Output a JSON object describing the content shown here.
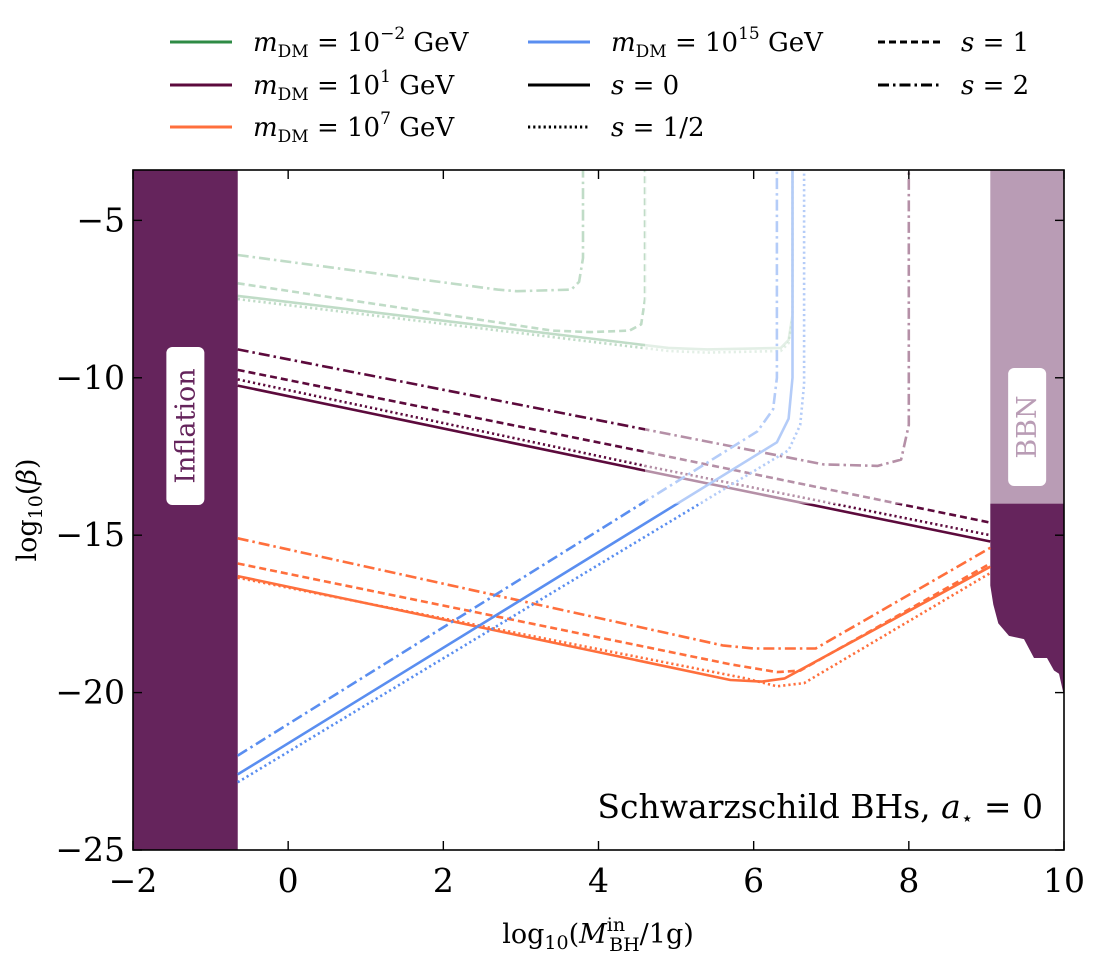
{
  "chart_data": {
    "type": "line",
    "title": "",
    "xlabel": "log10(M_BH^in/1g)",
    "ylabel": "log10(β)",
    "xlim": [
      -2,
      10
    ],
    "ylim": [
      -25,
      -3.4
    ],
    "x_ticks": [
      "−2",
      "0",
      "2",
      "4",
      "6",
      "8",
      "10"
    ],
    "y_ticks": [
      "−25",
      "−20",
      "−15",
      "−10",
      "−5"
    ],
    "grid": false,
    "legend_position": "top (above plot, three columns)",
    "annotation": "Schwarzschild BHs, a⋆ = 0",
    "regions": [
      {
        "name": "Inflation",
        "x_range": [
          -2,
          -0.65
        ],
        "color": "#65245c"
      },
      {
        "name": "BBN",
        "x_range": [
          9.05,
          10
        ],
        "color": "#65245c"
      }
    ],
    "legend": {
      "mass_entries": [
        {
          "label": "m_DM = 10^−2 GeV",
          "color": "#2e8b45"
        },
        {
          "label": "m_DM = 10^1 GeV",
          "color": "#5c0a3c"
        },
        {
          "label": "m_DM = 10^7 GeV",
          "color": "#ff6f3c"
        },
        {
          "label": "m_DM = 10^15 GeV",
          "color": "#5a8ef0"
        }
      ],
      "spin_entries": [
        {
          "label": "s = 0",
          "style": "solid"
        },
        {
          "label": "s = 1/2",
          "style": "dotted"
        },
        {
          "label": "s = 1",
          "style": "dashed"
        },
        {
          "label": "s = 2",
          "style": "dashdot"
        }
      ]
    },
    "series": [
      {
        "mass": "1e-2",
        "spin": "0",
        "color": "#2e8b45",
        "faded": true,
        "x": [
          -0.65,
          4.9,
          5.4,
          6.35,
          6.45,
          6.5,
          6.5
        ],
        "y": [
          -7.4,
          -9.05,
          -9.1,
          -9.05,
          -8.8,
          -8.0,
          -3.4
        ]
      },
      {
        "mass": "1e-2",
        "spin": "1/2",
        "color": "#2e8b45",
        "faded": true,
        "x": [
          -0.65,
          4.9,
          5.4,
          6.35,
          6.45,
          6.5,
          6.5
        ],
        "y": [
          -7.5,
          -9.15,
          -9.2,
          -9.15,
          -8.9,
          -8.1,
          -3.4
        ]
      },
      {
        "mass": "1e-2",
        "spin": "1",
        "color": "#2e8b45",
        "faded": true,
        "x": [
          -0.65,
          3.4,
          3.9,
          4.4,
          4.55,
          4.6,
          4.6
        ],
        "y": [
          -7.0,
          -8.5,
          -8.55,
          -8.5,
          -8.3,
          -7.5,
          -3.4
        ]
      },
      {
        "mass": "1e-2",
        "spin": "2",
        "color": "#2e8b45",
        "faded": true,
        "x": [
          -0.65,
          2.7,
          2.95,
          3.65,
          3.75,
          3.8,
          3.8
        ],
        "y": [
          -6.1,
          -7.2,
          -7.25,
          -7.2,
          -6.95,
          -6.2,
          -3.4
        ]
      },
      {
        "mass": "1e1",
        "spin": "0",
        "color": "#5c0a3c",
        "x": [
          -0.65,
          4.6,
          9.05
        ],
        "y": [
          -10.25,
          -12.95,
          -15.2
        ]
      },
      {
        "mass": "1e1",
        "spin": "1/2",
        "color": "#5c0a3c",
        "x": [
          -0.65,
          4.6,
          9.05
        ],
        "y": [
          -10.05,
          -12.8,
          -15.0
        ]
      },
      {
        "mass": "1e1",
        "spin": "1",
        "color": "#5c0a3c",
        "x": [
          -0.65,
          4.6,
          9.05
        ],
        "y": [
          -9.75,
          -12.35,
          -14.6
        ]
      },
      {
        "mass": "1e1",
        "spin": "2",
        "color": "#5c0a3c",
        "x": [
          -0.65,
          6.9,
          7.6,
          7.9,
          8.0,
          8.0
        ],
        "y": [
          -9.1,
          -12.75,
          -12.8,
          -12.6,
          -11.5,
          -3.4
        ]
      },
      {
        "mass": "1e7",
        "spin": "0",
        "color": "#ff6f3c",
        "x": [
          -0.65,
          5.7,
          6.1,
          6.4,
          9.05
        ],
        "y": [
          -16.3,
          -19.6,
          -19.65,
          -19.55,
          -16.0
        ]
      },
      {
        "mass": "1e7",
        "spin": "1/2",
        "color": "#ff6f3c",
        "x": [
          -0.65,
          5.9,
          6.3,
          6.65,
          9.05
        ],
        "y": [
          -16.35,
          -19.55,
          -19.8,
          -19.7,
          -16.2
        ]
      },
      {
        "mass": "1e7",
        "spin": "1",
        "color": "#ff6f3c",
        "x": [
          -0.65,
          5.7,
          6.3,
          6.6,
          9.05
        ],
        "y": [
          -15.9,
          -19.1,
          -19.35,
          -19.3,
          -15.9
        ]
      },
      {
        "mass": "1e7",
        "spin": "2",
        "color": "#ff6f3c",
        "x": [
          -0.65,
          5.6,
          6.0,
          6.8,
          9.05
        ],
        "y": [
          -15.1,
          -18.5,
          -18.6,
          -18.6,
          -15.4
        ]
      },
      {
        "mass": "1e15",
        "spin": "0",
        "color": "#5a8ef0",
        "x": [
          -0.65,
          6.3,
          6.45,
          6.5,
          6.5
        ],
        "y": [
          -22.6,
          -12.05,
          -11.3,
          -10.0,
          -3.4
        ]
      },
      {
        "mass": "1e15",
        "spin": "1/2",
        "color": "#5a8ef0",
        "x": [
          -0.65,
          6.45,
          6.6,
          6.65,
          6.65
        ],
        "y": [
          -22.85,
          -12.3,
          -11.5,
          -10.2,
          -3.4
        ]
      },
      {
        "mass": "1e15",
        "spin": "2",
        "color": "#5a8ef0",
        "x": [
          -0.65,
          6.05,
          6.25,
          6.3,
          6.3
        ],
        "y": [
          -22.0,
          -11.7,
          -11.0,
          -10.0,
          -3.4
        ]
      }
    ]
  }
}
